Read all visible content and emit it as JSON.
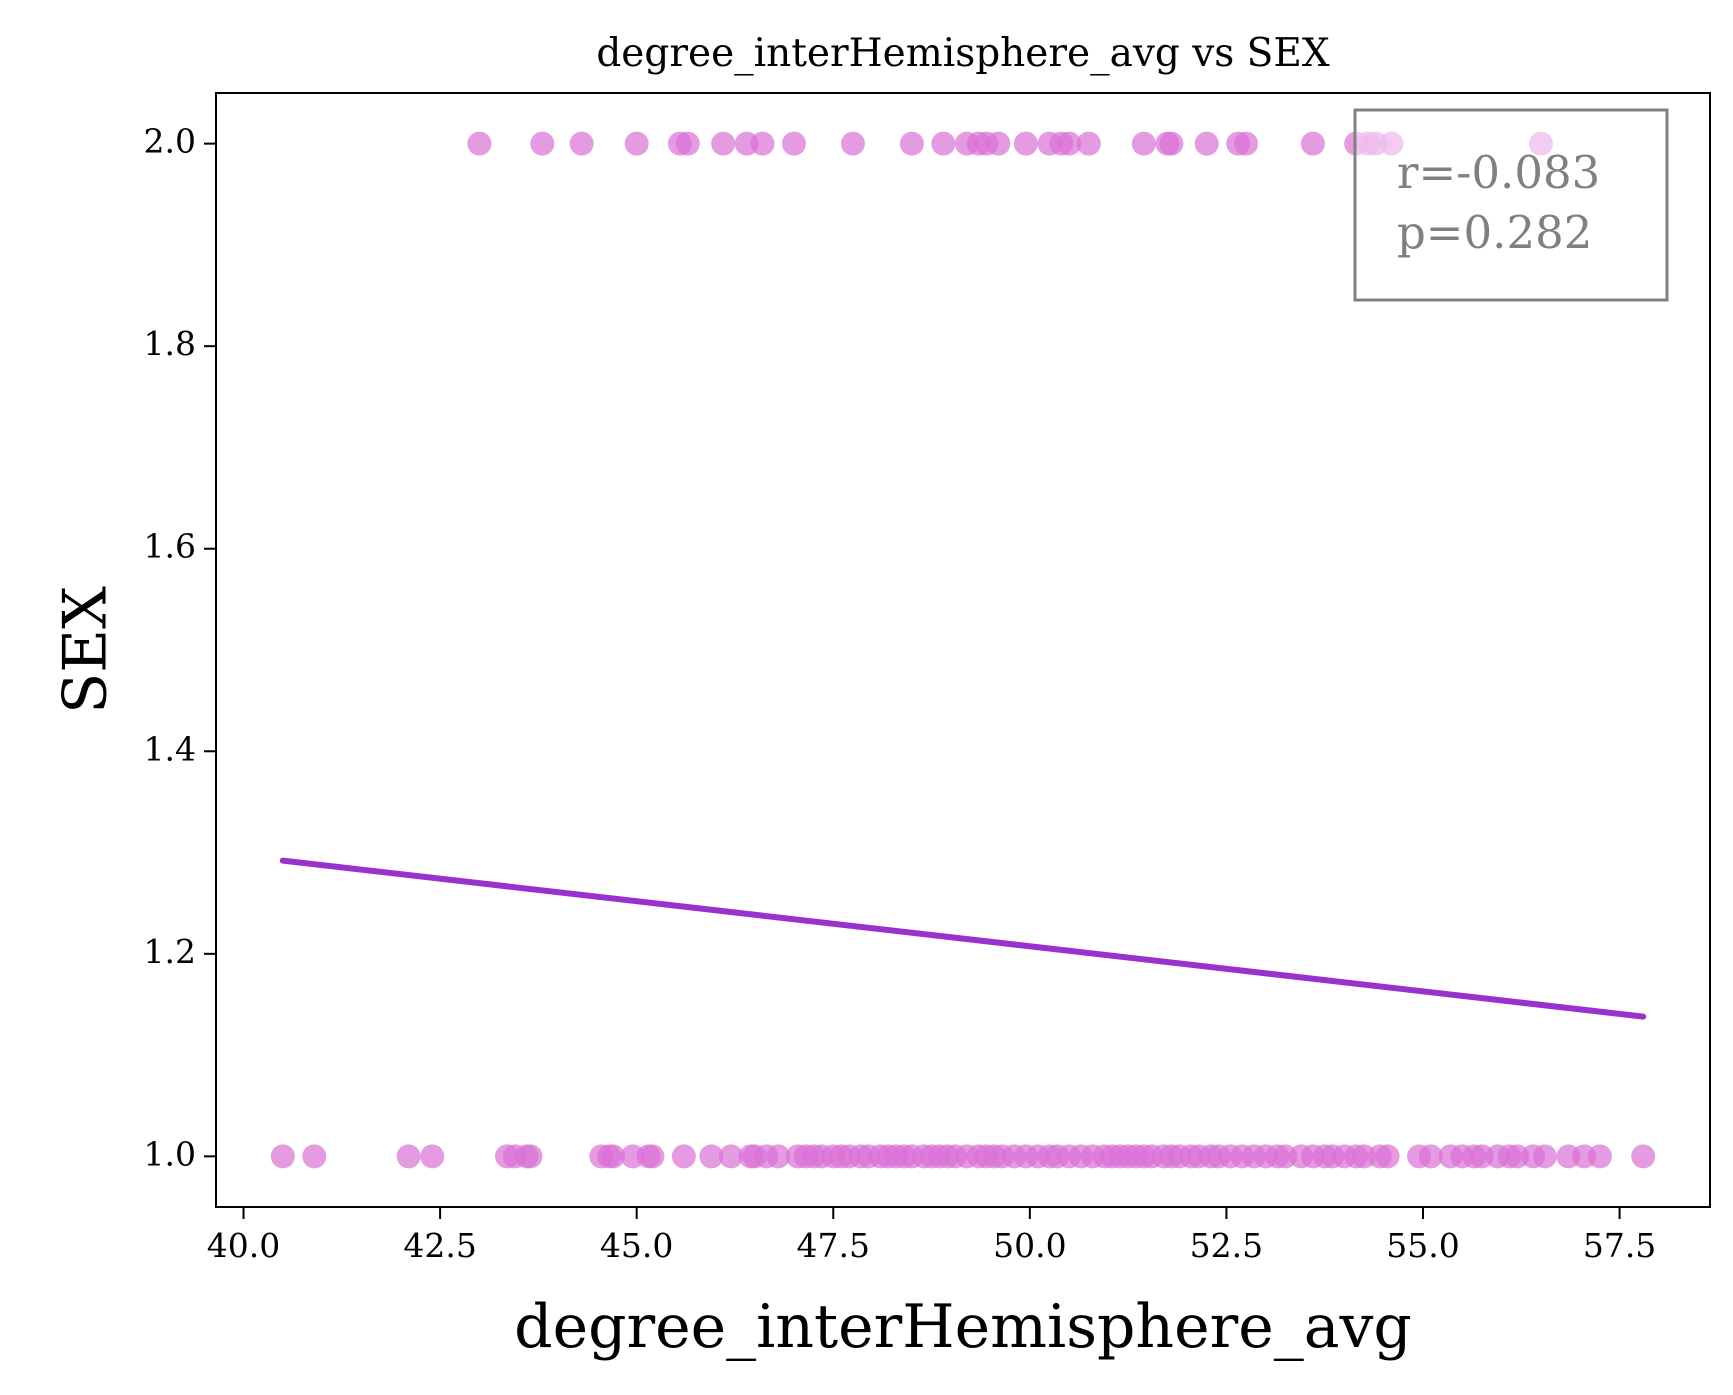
{
  "chart_data": {
    "type": "scatter",
    "title": "degree_interHemisphere_avg vs SEX",
    "xlabel": "degree_interHemisphere_avg",
    "ylabel": "SEX",
    "xlim": [
      39.65,
      58.65
    ],
    "ylim": [
      0.95,
      2.05
    ],
    "xticks": [
      40.0,
      42.5,
      45.0,
      47.5,
      50.0,
      52.5,
      55.0,
      57.5
    ],
    "xtick_labels": [
      "40.0",
      "42.5",
      "45.0",
      "47.5",
      "50.0",
      "52.5",
      "55.0",
      "57.5"
    ],
    "yticks": [
      1.0,
      1.2,
      1.4,
      1.6,
      1.8,
      2.0
    ],
    "ytick_labels": [
      "1.0",
      "1.2",
      "1.4",
      "1.6",
      "1.8",
      "2.0"
    ],
    "grid": false,
    "colors": {
      "points": "#da70d6",
      "line": "#9932cc",
      "annotation": "#808080"
    },
    "annotation": {
      "lines": [
        "r=-0.083",
        "p=0.282"
      ],
      "placement": "top-right"
    },
    "regression_line": {
      "x": [
        40.5,
        57.8
      ],
      "y": [
        1.292,
        1.138
      ]
    },
    "series": [
      {
        "x": [
          43.0,
          43.8,
          44.3,
          45.0,
          45.55,
          45.65,
          46.1,
          46.4,
          46.6,
          47.0,
          47.75,
          48.5,
          48.9,
          49.2,
          49.35,
          49.45,
          49.6,
          49.95,
          50.25,
          50.4,
          50.5,
          50.75,
          51.45,
          51.75,
          51.8,
          52.25,
          52.65,
          52.75,
          53.6,
          54.15,
          54.3,
          54.4,
          54.6,
          56.5
        ],
        "y": [
          2,
          2,
          2,
          2,
          2,
          2,
          2,
          2,
          2,
          2,
          2,
          2,
          2,
          2,
          2,
          2,
          2,
          2,
          2,
          2,
          2,
          2,
          2,
          2,
          2,
          2,
          2,
          2,
          2,
          2,
          2,
          2,
          2,
          2
        ]
      },
      {
        "x": [
          40.5,
          40.9,
          42.1,
          42.4,
          43.35,
          43.45,
          43.6,
          43.65,
          44.55,
          44.65,
          44.7,
          44.95,
          45.15,
          45.2,
          45.6,
          45.95,
          46.2,
          46.45,
          46.5,
          46.65,
          46.8,
          47.05,
          47.15,
          47.25,
          47.35,
          47.5,
          47.6,
          47.7,
          47.85,
          47.95,
          48.1,
          48.2,
          48.3,
          48.4,
          48.5,
          48.65,
          48.75,
          48.85,
          48.95,
          49.05,
          49.2,
          49.35,
          49.45,
          49.55,
          49.65,
          49.8,
          49.95,
          50.1,
          50.25,
          50.35,
          50.5,
          50.65,
          50.8,
          50.95,
          51.05,
          51.15,
          51.25,
          51.35,
          51.45,
          51.55,
          51.7,
          51.8,
          51.9,
          52.05,
          52.15,
          52.3,
          52.4,
          52.55,
          52.7,
          52.85,
          53.0,
          53.15,
          53.25,
          53.45,
          53.6,
          53.75,
          53.85,
          54.0,
          54.15,
          54.25,
          54.45,
          54.55,
          54.95,
          55.1,
          55.35,
          55.5,
          55.65,
          55.75,
          55.95,
          56.1,
          56.2,
          56.4,
          56.55,
          56.85,
          57.05,
          57.25,
          57.8
        ],
        "y": [
          1,
          1,
          1,
          1,
          1,
          1,
          1,
          1,
          1,
          1,
          1,
          1,
          1,
          1,
          1,
          1,
          1,
          1,
          1,
          1,
          1,
          1,
          1,
          1,
          1,
          1,
          1,
          1,
          1,
          1,
          1,
          1,
          1,
          1,
          1,
          1,
          1,
          1,
          1,
          1,
          1,
          1,
          1,
          1,
          1,
          1,
          1,
          1,
          1,
          1,
          1,
          1,
          1,
          1,
          1,
          1,
          1,
          1,
          1,
          1,
          1,
          1,
          1,
          1,
          1,
          1,
          1,
          1,
          1,
          1,
          1,
          1,
          1,
          1,
          1,
          1,
          1,
          1,
          1,
          1,
          1,
          1,
          1,
          1,
          1,
          1,
          1,
          1,
          1,
          1,
          1,
          1,
          1,
          1,
          1,
          1,
          1
        ]
      }
    ]
  }
}
